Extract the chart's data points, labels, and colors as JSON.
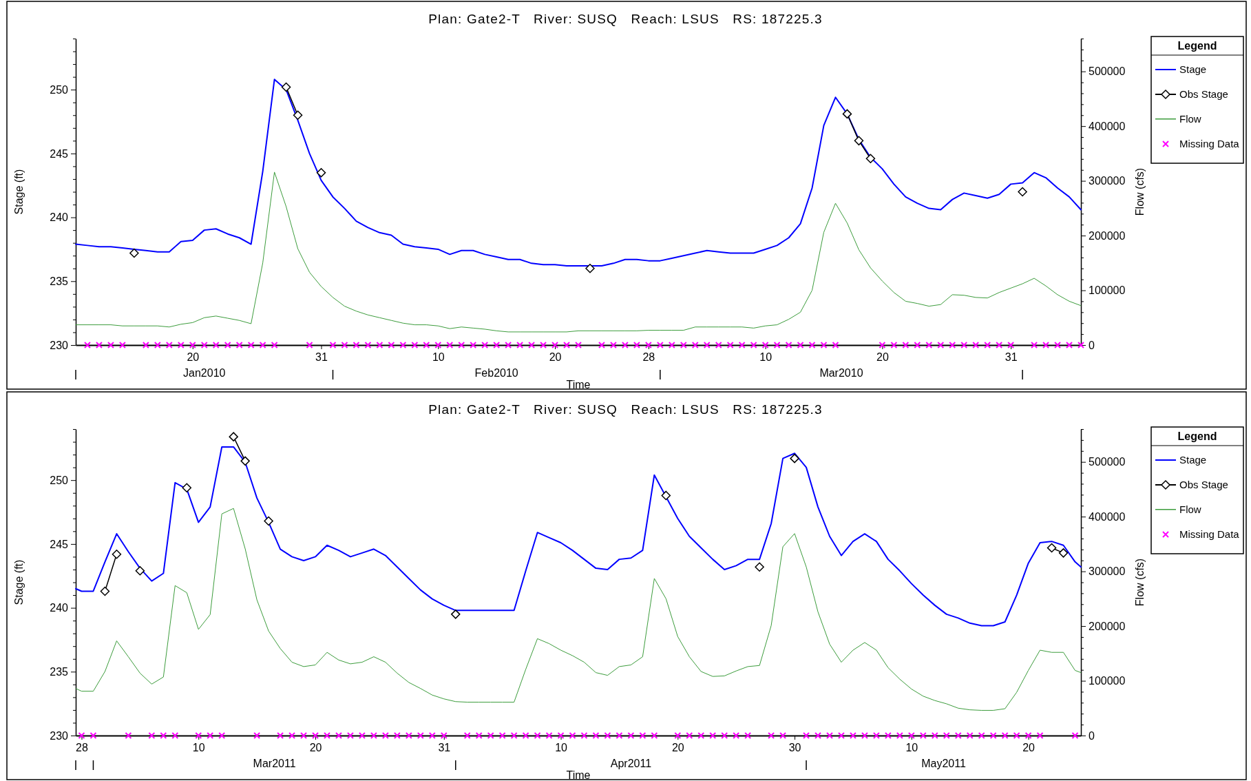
{
  "chart_data": [
    {
      "type": "line",
      "title": "Plan: Gate2-T   River: SUSQ   Reach: LSUS   RS: 187225.3",
      "xlabel": "Time",
      "ylabel": "Stage (ft)",
      "y2label": "Flow (cfs)",
      "legend_title": "Legend",
      "legend": "right",
      "xlim": [
        "2010-01-10",
        "2010-04-06"
      ],
      "xticks": [
        {
          "value": "2010-01-20",
          "label": "20"
        },
        {
          "value": "2010-01-31",
          "label": "31"
        },
        {
          "value": "2010-02-10",
          "label": "10"
        },
        {
          "value": "2010-02-20",
          "label": "20"
        },
        {
          "value": "2010-02-28",
          "label": "28"
        },
        {
          "value": "2010-03-10",
          "label": "10"
        },
        {
          "value": "2010-03-20",
          "label": "20"
        },
        {
          "value": "2010-03-31",
          "label": "31"
        }
      ],
      "ylim": [
        230,
        254
      ],
      "yticks": [
        230,
        {
          "value": 231,
          "label": null
        },
        {
          "value": 232,
          "label": null
        },
        {
          "value": 233,
          "label": null
        },
        {
          "value": 234,
          "label": null
        },
        235,
        {
          "value": 236,
          "label": null
        },
        {
          "value": 237,
          "label": null
        },
        {
          "value": 238,
          "label": null
        },
        {
          "value": 239,
          "label": null
        },
        240,
        {
          "value": 241,
          "label": null
        },
        {
          "value": 242,
          "label": null
        },
        {
          "value": 243,
          "label": null
        },
        {
          "value": 244,
          "label": null
        },
        245,
        {
          "value": 246,
          "label": null
        },
        {
          "value": 247,
          "label": null
        },
        {
          "value": 248,
          "label": null
        },
        {
          "value": 249,
          "label": null
        },
        250,
        {
          "value": 251,
          "label": null
        },
        {
          "value": 252,
          "label": null
        },
        {
          "value": 253,
          "label": null
        },
        {
          "value": 254,
          "label": null
        }
      ],
      "y2lim": [
        0,
        560000
      ],
      "y2ticks": [
        0,
        {
          "value": 20000,
          "label": null
        },
        {
          "value": 40000,
          "label": null
        },
        {
          "value": 60000,
          "label": null
        },
        {
          "value": 80000,
          "label": null
        },
        100000,
        {
          "value": 120000,
          "label": null
        },
        {
          "value": 140000,
          "label": null
        },
        {
          "value": 160000,
          "label": null
        },
        {
          "value": 180000,
          "label": null
        },
        200000,
        {
          "value": 220000,
          "label": null
        },
        {
          "value": 240000,
          "label": null
        },
        {
          "value": 260000,
          "label": null
        },
        {
          "value": 280000,
          "label": null
        },
        300000,
        {
          "value": 320000,
          "label": null
        },
        {
          "value": 340000,
          "label": null
        },
        {
          "value": 360000,
          "label": null
        },
        {
          "value": 380000,
          "label": null
        },
        400000,
        {
          "value": 420000,
          "label": null
        },
        {
          "value": 440000,
          "label": null
        },
        {
          "value": 460000,
          "label": null
        },
        {
          "value": 480000,
          "label": null
        },
        500000,
        {
          "value": 520000,
          "label": null
        },
        {
          "value": 540000,
          "label": null
        },
        {
          "value": 560000,
          "label": null
        }
      ],
      "annotations": [
        "Jan2010",
        "Feb2010",
        "Mar2010"
      ],
      "x": [
        "2010-01-10",
        "2010-01-11",
        "2010-01-12",
        "2010-01-13",
        "2010-01-14",
        "2010-01-15",
        "2010-01-16",
        "2010-01-17",
        "2010-01-18",
        "2010-01-19",
        "2010-01-20",
        "2010-01-21",
        "2010-01-22",
        "2010-01-23",
        "2010-01-24",
        "2010-01-25",
        "2010-01-26",
        "2010-01-27",
        "2010-01-28",
        "2010-01-29",
        "2010-01-30",
        "2010-01-31",
        "2010-02-01",
        "2010-02-02",
        "2010-02-03",
        "2010-02-04",
        "2010-02-05",
        "2010-02-06",
        "2010-02-07",
        "2010-02-08",
        "2010-02-09",
        "2010-02-10",
        "2010-02-11",
        "2010-02-12",
        "2010-02-13",
        "2010-02-14",
        "2010-02-15",
        "2010-02-16",
        "2010-02-17",
        "2010-02-18",
        "2010-02-19",
        "2010-02-20",
        "2010-02-21",
        "2010-02-22",
        "2010-02-23",
        "2010-02-24",
        "2010-02-25",
        "2010-02-26",
        "2010-02-27",
        "2010-02-28",
        "2010-03-01",
        "2010-03-02",
        "2010-03-03",
        "2010-03-04",
        "2010-03-05",
        "2010-03-06",
        "2010-03-07",
        "2010-03-08",
        "2010-03-09",
        "2010-03-10",
        "2010-03-11",
        "2010-03-12",
        "2010-03-13",
        "2010-03-14",
        "2010-03-15",
        "2010-03-16",
        "2010-03-17",
        "2010-03-18",
        "2010-03-19",
        "2010-03-20",
        "2010-03-21",
        "2010-03-22",
        "2010-03-23",
        "2010-03-24",
        "2010-03-25",
        "2010-03-26",
        "2010-03-27",
        "2010-03-28",
        "2010-03-29",
        "2010-03-30",
        "2010-03-31",
        "2010-04-01",
        "2010-04-02",
        "2010-04-03",
        "2010-04-04",
        "2010-04-05",
        "2010-04-06"
      ],
      "series": [
        {
          "name": "Stage",
          "color": "#0000ff",
          "values": [
            237.9,
            237.8,
            237.7,
            237.7,
            237.6,
            237.5,
            237.4,
            237.3,
            237.3,
            238.1,
            238.2,
            239.0,
            239.1,
            238.7,
            238.4,
            237.9,
            243.6,
            250.8,
            250.0,
            247.6,
            245.0,
            242.9,
            241.6,
            240.7,
            239.7,
            239.2,
            238.8,
            238.6,
            237.9,
            237.7,
            237.6,
            237.5,
            237.1,
            237.4,
            237.4,
            237.1,
            236.9,
            236.7,
            236.7,
            236.4,
            236.3,
            236.3,
            236.2,
            236.2,
            236.2,
            236.2,
            236.4,
            236.7,
            236.7,
            236.6,
            236.6,
            236.8,
            237.0,
            237.2,
            237.4,
            237.3,
            237.2,
            237.2,
            237.2,
            237.5,
            237.8,
            238.4,
            239.5,
            242.3,
            247.2,
            249.4,
            248.1,
            246.1,
            244.7,
            243.8,
            242.6,
            241.6,
            241.1,
            240.7,
            240.6,
            241.4,
            241.9,
            241.7,
            241.5,
            241.8,
            242.6,
            242.7,
            243.5,
            243.1,
            242.3,
            241.6,
            240.6
          ]
        },
        {
          "name": "Obs Stage",
          "marker": "diamond",
          "color": "#000000",
          "x": [
            "2010-01-15",
            "2010-01-16",
            "2010-01-28",
            "2010-01-29",
            "2010-01-30",
            "2010-01-31",
            "2010-02-01",
            "2010-02-23",
            "2010-02-24",
            "2010-03-17",
            "2010-03-18",
            "2010-03-19",
            "2010-03-20",
            "2010-04-01"
          ],
          "values": [
            237.2,
            null,
            250.2,
            248.0,
            null,
            243.5,
            null,
            236.0,
            null,
            248.1,
            246.0,
            244.6,
            null,
            242.0
          ]
        },
        {
          "name": "Flow",
          "axis": "y2",
          "color": "#3c9c3c",
          "values": [
            37000,
            37000,
            37000,
            37000,
            35000,
            35000,
            35000,
            35000,
            33000,
            38000,
            41000,
            50000,
            53000,
            49000,
            45000,
            39000,
            150000,
            316000,
            253000,
            176000,
            133000,
            107000,
            87000,
            71000,
            62000,
            55000,
            50000,
            45000,
            40000,
            37000,
            37000,
            35000,
            30000,
            33000,
            31000,
            29000,
            26000,
            24000,
            24000,
            24000,
            24000,
            24000,
            24000,
            26000,
            26000,
            26000,
            26000,
            26000,
            26000,
            27000,
            27000,
            27000,
            27000,
            33000,
            33000,
            33000,
            33000,
            33000,
            31000,
            35000,
            37000,
            47000,
            60000,
            100000,
            206000,
            259000,
            223000,
            174000,
            141000,
            117000,
            96000,
            80000,
            76000,
            71000,
            74000,
            92000,
            91000,
            87000,
            86000,
            96000,
            104000,
            112000,
            122000,
            108000,
            92000,
            80000,
            72000
          ]
        },
        {
          "name": "Missing Data",
          "type": "scatter",
          "marker": "cross",
          "color": "#ff00ff",
          "x": [
            "2010-01-11",
            "2010-01-12",
            "2010-01-13",
            "2010-01-14",
            "2010-01-16",
            "2010-01-17",
            "2010-01-18",
            "2010-01-19",
            "2010-01-20",
            "2010-01-21",
            "2010-01-22",
            "2010-01-23",
            "2010-01-24",
            "2010-01-25",
            "2010-01-26",
            "2010-01-27",
            "2010-01-30",
            "2010-02-01",
            "2010-02-02",
            "2010-02-03",
            "2010-02-04",
            "2010-02-05",
            "2010-02-06",
            "2010-02-07",
            "2010-02-08",
            "2010-02-09",
            "2010-02-10",
            "2010-02-11",
            "2010-02-12",
            "2010-02-13",
            "2010-02-14",
            "2010-02-15",
            "2010-02-16",
            "2010-02-17",
            "2010-02-18",
            "2010-02-19",
            "2010-02-20",
            "2010-02-21",
            "2010-02-22",
            "2010-02-24",
            "2010-02-25",
            "2010-02-26",
            "2010-02-27",
            "2010-02-28",
            "2010-03-01",
            "2010-03-02",
            "2010-03-03",
            "2010-03-04",
            "2010-03-05",
            "2010-03-06",
            "2010-03-07",
            "2010-03-08",
            "2010-03-09",
            "2010-03-10",
            "2010-03-11",
            "2010-03-12",
            "2010-03-13",
            "2010-03-14",
            "2010-03-15",
            "2010-03-16",
            "2010-03-20",
            "2010-03-21",
            "2010-03-22",
            "2010-03-23",
            "2010-03-24",
            "2010-03-25",
            "2010-03-26",
            "2010-03-27",
            "2010-03-28",
            "2010-03-29",
            "2010-03-30",
            "2010-03-31",
            "2010-04-02",
            "2010-04-03",
            "2010-04-04",
            "2010-04-05",
            "2010-04-06"
          ],
          "values": [
            230,
            230,
            230,
            230,
            230,
            230,
            230,
            230,
            230,
            230,
            230,
            230,
            230,
            230,
            230,
            230,
            230,
            230,
            230,
            230,
            230,
            230,
            230,
            230,
            230,
            230,
            230,
            230,
            230,
            230,
            230,
            230,
            230,
            230,
            230,
            230,
            230,
            230,
            230,
            230,
            230,
            230,
            230,
            230,
            230,
            230,
            230,
            230,
            230,
            230,
            230,
            230,
            230,
            230,
            230,
            230,
            230,
            230,
            230,
            230,
            230,
            230,
            230,
            230,
            230,
            230,
            230,
            230,
            230,
            230,
            230,
            230,
            230,
            230,
            230,
            230,
            230
          ]
        }
      ]
    },
    {
      "type": "line",
      "title": "Plan: Gate2-T   River: SUSQ   Reach: LSUS   RS: 187225.3",
      "xlabel": "Time",
      "ylabel": "Stage (ft)",
      "y2label": "Flow (cfs)",
      "legend_title": "Legend",
      "legend": "right",
      "xlim": [
        "2011-02-27T12:00",
        "2011-05-24T12:00"
      ],
      "xticks": [
        {
          "value": "2011-02-28",
          "label": "28"
        },
        {
          "value": "2011-03-10",
          "label": "10"
        },
        {
          "value": "2011-03-20",
          "label": "20"
        },
        {
          "value": "2011-03-31",
          "label": "31"
        },
        {
          "value": "2011-04-10",
          "label": "10"
        },
        {
          "value": "2011-04-20",
          "label": "20"
        },
        {
          "value": "2011-04-30",
          "label": "30"
        },
        {
          "value": "2011-05-10",
          "label": "10"
        },
        {
          "value": "2011-05-20",
          "label": "20"
        }
      ],
      "ylim": [
        230,
        254
      ],
      "yticks": [
        230,
        {
          "value": 231,
          "label": null
        },
        {
          "value": 232,
          "label": null
        },
        {
          "value": 233,
          "label": null
        },
        {
          "value": 234,
          "label": null
        },
        235,
        {
          "value": 236,
          "label": null
        },
        {
          "value": 237,
          "label": null
        },
        {
          "value": 238,
          "label": null
        },
        {
          "value": 239,
          "label": null
        },
        240,
        {
          "value": 241,
          "label": null
        },
        {
          "value": 242,
          "label": null
        },
        {
          "value": 243,
          "label": null
        },
        {
          "value": 244,
          "label": null
        },
        245,
        {
          "value": 246,
          "label": null
        },
        {
          "value": 247,
          "label": null
        },
        {
          "value": 248,
          "label": null
        },
        {
          "value": 249,
          "label": null
        },
        250,
        {
          "value": 251,
          "label": null
        },
        {
          "value": 252,
          "label": null
        },
        {
          "value": 253,
          "label": null
        },
        {
          "value": 254,
          "label": null
        }
      ],
      "y2lim": [
        0,
        560000
      ],
      "y2ticks": [
        0,
        {
          "value": 20000,
          "label": null
        },
        {
          "value": 40000,
          "label": null
        },
        {
          "value": 60000,
          "label": null
        },
        {
          "value": 80000,
          "label": null
        },
        100000,
        {
          "value": 120000,
          "label": null
        },
        {
          "value": 140000,
          "label": null
        },
        {
          "value": 160000,
          "label": null
        },
        {
          "value": 180000,
          "label": null
        },
        200000,
        {
          "value": 220000,
          "label": null
        },
        {
          "value": 240000,
          "label": null
        },
        {
          "value": 260000,
          "label": null
        },
        {
          "value": 280000,
          "label": null
        },
        300000,
        {
          "value": 320000,
          "label": null
        },
        {
          "value": 340000,
          "label": null
        },
        {
          "value": 360000,
          "label": null
        },
        {
          "value": 380000,
          "label": null
        },
        400000,
        {
          "value": 420000,
          "label": null
        },
        {
          "value": 440000,
          "label": null
        },
        {
          "value": 460000,
          "label": null
        },
        {
          "value": 480000,
          "label": null
        },
        500000,
        {
          "value": 520000,
          "label": null
        },
        {
          "value": 540000,
          "label": null
        },
        {
          "value": 560000,
          "label": null
        }
      ],
      "annotations": [
        "Mar2011",
        "Apr2011",
        "May2011"
      ],
      "x": [
        "2011-02-27T12:00",
        "2011-02-28",
        "2011-03-01",
        "2011-03-02",
        "2011-03-03",
        "2011-03-04",
        "2011-03-05",
        "2011-03-06",
        "2011-03-07",
        "2011-03-08",
        "2011-03-09",
        "2011-03-10",
        "2011-03-11",
        "2011-03-12",
        "2011-03-13",
        "2011-03-14",
        "2011-03-15",
        "2011-03-16",
        "2011-03-17",
        "2011-03-18",
        "2011-03-19",
        "2011-03-20",
        "2011-03-21",
        "2011-03-22",
        "2011-03-23",
        "2011-03-24",
        "2011-03-25",
        "2011-03-26",
        "2011-03-27",
        "2011-03-28",
        "2011-03-29",
        "2011-03-30",
        "2011-03-31",
        "2011-04-01",
        "2011-04-02",
        "2011-04-03",
        "2011-04-04",
        "2011-04-05",
        "2011-04-06",
        "2011-04-07",
        "2011-04-08",
        "2011-04-09",
        "2011-04-10",
        "2011-04-11",
        "2011-04-12",
        "2011-04-13",
        "2011-04-14",
        "2011-04-15",
        "2011-04-16",
        "2011-04-17",
        "2011-04-18",
        "2011-04-19",
        "2011-04-20",
        "2011-04-21",
        "2011-04-22",
        "2011-04-23",
        "2011-04-24",
        "2011-04-25",
        "2011-04-26",
        "2011-04-27",
        "2011-04-28",
        "2011-04-29",
        "2011-04-30",
        "2011-05-01",
        "2011-05-02",
        "2011-05-03",
        "2011-05-04",
        "2011-05-05",
        "2011-05-06",
        "2011-05-07",
        "2011-05-08",
        "2011-05-09",
        "2011-05-10",
        "2011-05-11",
        "2011-05-12",
        "2011-05-13",
        "2011-05-14",
        "2011-05-15",
        "2011-05-16",
        "2011-05-17",
        "2011-05-18",
        "2011-05-19",
        "2011-05-20",
        "2011-05-21",
        "2011-05-22",
        "2011-05-23",
        "2011-05-24",
        "2011-05-24T12:00"
      ],
      "series": [
        {
          "name": "Stage",
          "color": "#0000ff",
          "values": [
            241.5,
            241.3,
            241.3,
            243.6,
            245.8,
            244.4,
            243.1,
            242.1,
            242.7,
            249.8,
            249.3,
            246.7,
            247.9,
            252.6,
            252.6,
            251.4,
            248.6,
            246.7,
            244.6,
            244.0,
            243.7,
            244.0,
            244.9,
            244.5,
            244.0,
            244.3,
            244.6,
            244.1,
            243.2,
            242.3,
            241.4,
            240.7,
            240.2,
            239.8,
            239.8,
            239.8,
            239.8,
            239.8,
            239.8,
            242.9,
            245.9,
            245.5,
            245.1,
            244.5,
            243.8,
            243.1,
            243.0,
            243.8,
            243.9,
            244.5,
            250.4,
            248.7,
            247.0,
            245.6,
            244.7,
            243.8,
            243.0,
            243.3,
            243.8,
            243.8,
            246.6,
            251.7,
            252.1,
            251.0,
            247.9,
            245.6,
            244.1,
            245.2,
            245.8,
            245.2,
            243.8,
            242.9,
            241.9,
            241.0,
            240.2,
            239.5,
            239.2,
            238.8,
            238.6,
            238.6,
            238.9,
            241.0,
            243.5,
            245.1,
            245.2,
            244.9,
            243.6,
            243.2
          ]
        },
        {
          "name": "Obs Stage",
          "marker": "diamond",
          "color": "#000000",
          "x": [
            "2011-03-02",
            "2011-03-03",
            "2011-03-04",
            "2011-03-05",
            "2011-03-06",
            "2011-03-09",
            "2011-03-10",
            "2011-03-13",
            "2011-03-14",
            "2011-03-15",
            "2011-03-16",
            "2011-03-17",
            "2011-04-01",
            "2011-04-02",
            "2011-04-19",
            "2011-04-20",
            "2011-04-27",
            "2011-04-28",
            "2011-04-30",
            "2011-05-01",
            "2011-05-22",
            "2011-05-23"
          ],
          "values": [
            241.3,
            244.2,
            null,
            242.9,
            null,
            249.4,
            null,
            253.4,
            251.5,
            null,
            246.8,
            null,
            239.5,
            null,
            248.8,
            null,
            243.2,
            null,
            251.7,
            null,
            244.7,
            244.3
          ]
        },
        {
          "name": "Flow",
          "axis": "y2",
          "color": "#3c9c3c",
          "values": [
            86000,
            81000,
            81000,
            117000,
            173000,
            144000,
            114000,
            94000,
            107000,
            274000,
            261000,
            194000,
            221000,
            405000,
            415000,
            341000,
            248000,
            191000,
            159000,
            134000,
            126000,
            129000,
            152000,
            138000,
            131000,
            134000,
            144000,
            134000,
            114000,
            97000,
            86000,
            74000,
            67000,
            62000,
            61000,
            61000,
            61000,
            61000,
            61000,
            121000,
            177000,
            168000,
            156000,
            146000,
            134000,
            115000,
            110000,
            126000,
            129000,
            144000,
            287000,
            250000,
            181000,
            144000,
            117000,
            108000,
            109000,
            118000,
            126000,
            128000,
            201000,
            345000,
            369000,
            308000,
            226000,
            167000,
            134000,
            156000,
            170000,
            156000,
            124000,
            103000,
            85000,
            72000,
            64000,
            58000,
            50000,
            47000,
            46000,
            46000,
            49000,
            79000,
            119000,
            156000,
            152000,
            152000,
            119000,
            115000
          ]
        },
        {
          "name": "Missing Data",
          "type": "scatter",
          "marker": "cross",
          "color": "#ff00ff",
          "x": [
            "2011-02-28",
            "2011-03-01",
            "2011-03-04",
            "2011-03-06",
            "2011-03-07",
            "2011-03-08",
            "2011-03-10",
            "2011-03-11",
            "2011-03-12",
            "2011-03-15",
            "2011-03-17",
            "2011-03-18",
            "2011-03-19",
            "2011-03-20",
            "2011-03-21",
            "2011-03-22",
            "2011-03-23",
            "2011-03-24",
            "2011-03-25",
            "2011-03-26",
            "2011-03-27",
            "2011-03-28",
            "2011-03-29",
            "2011-03-30",
            "2011-03-31",
            "2011-04-02",
            "2011-04-03",
            "2011-04-04",
            "2011-04-05",
            "2011-04-06",
            "2011-04-07",
            "2011-04-08",
            "2011-04-09",
            "2011-04-10",
            "2011-04-11",
            "2011-04-12",
            "2011-04-13",
            "2011-04-14",
            "2011-04-15",
            "2011-04-16",
            "2011-04-17",
            "2011-04-18",
            "2011-04-20",
            "2011-04-21",
            "2011-04-22",
            "2011-04-23",
            "2011-04-24",
            "2011-04-25",
            "2011-04-26",
            "2011-04-28",
            "2011-04-29",
            "2011-05-01",
            "2011-05-02",
            "2011-05-03",
            "2011-05-04",
            "2011-05-05",
            "2011-05-06",
            "2011-05-07",
            "2011-05-08",
            "2011-05-09",
            "2011-05-10",
            "2011-05-11",
            "2011-05-12",
            "2011-05-13",
            "2011-05-14",
            "2011-05-15",
            "2011-05-16",
            "2011-05-17",
            "2011-05-18",
            "2011-05-19",
            "2011-05-20",
            "2011-05-21",
            "2011-05-24"
          ],
          "values": [
            230,
            230,
            230,
            230,
            230,
            230,
            230,
            230,
            230,
            230,
            230,
            230,
            230,
            230,
            230,
            230,
            230,
            230,
            230,
            230,
            230,
            230,
            230,
            230,
            230,
            230,
            230,
            230,
            230,
            230,
            230,
            230,
            230,
            230,
            230,
            230,
            230,
            230,
            230,
            230,
            230,
            230,
            230,
            230,
            230,
            230,
            230,
            230,
            230,
            230,
            230,
            230,
            230,
            230,
            230,
            230,
            230,
            230,
            230,
            230,
            230,
            230,
            230,
            230,
            230,
            230,
            230,
            230,
            230,
            230,
            230,
            230,
            230
          ]
        }
      ]
    }
  ]
}
